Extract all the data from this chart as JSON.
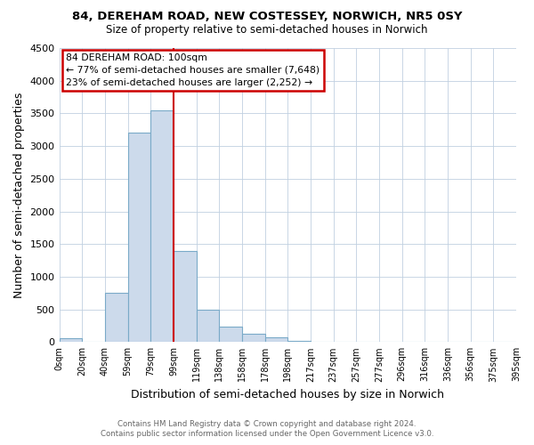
{
  "title": "84, DEREHAM ROAD, NEW COSTESSEY, NORWICH, NR5 0SY",
  "subtitle": "Size of property relative to semi-detached houses in Norwich",
  "xlabel": "Distribution of semi-detached houses by size in Norwich",
  "ylabel": "Number of semi-detached properties",
  "bin_labels": [
    "0sqm",
    "20sqm",
    "40sqm",
    "59sqm",
    "79sqm",
    "99sqm",
    "119sqm",
    "138sqm",
    "158sqm",
    "178sqm",
    "198sqm",
    "217sqm",
    "237sqm",
    "257sqm",
    "277sqm",
    "296sqm",
    "316sqm",
    "336sqm",
    "356sqm",
    "375sqm",
    "395sqm"
  ],
  "bar_heights": [
    60,
    0,
    750,
    3200,
    3550,
    1400,
    500,
    230,
    130,
    70,
    20,
    0,
    0,
    0,
    0,
    0,
    0,
    0,
    0,
    0
  ],
  "bar_color": "#ccdaeb",
  "bar_edgecolor": "#7aaac8",
  "property_line_x": 5,
  "property_line_color": "#cc0000",
  "annotation_title": "84 DEREHAM ROAD: 100sqm",
  "annotation_line1": "← 77% of semi-detached houses are smaller (7,648)",
  "annotation_line2": "23% of semi-detached houses are larger (2,252) →",
  "annotation_box_color": "#ffffff",
  "annotation_box_edgecolor": "#cc0000",
  "ylim": [
    0,
    4500
  ],
  "yticks": [
    0,
    500,
    1000,
    1500,
    2000,
    2500,
    3000,
    3500,
    4000,
    4500
  ],
  "footer_line1": "Contains HM Land Registry data © Crown copyright and database right 2024.",
  "footer_line2": "Contains public sector information licensed under the Open Government Licence v3.0.",
  "bg_color": "#ffffff",
  "grid_color": "#c0d0e0"
}
